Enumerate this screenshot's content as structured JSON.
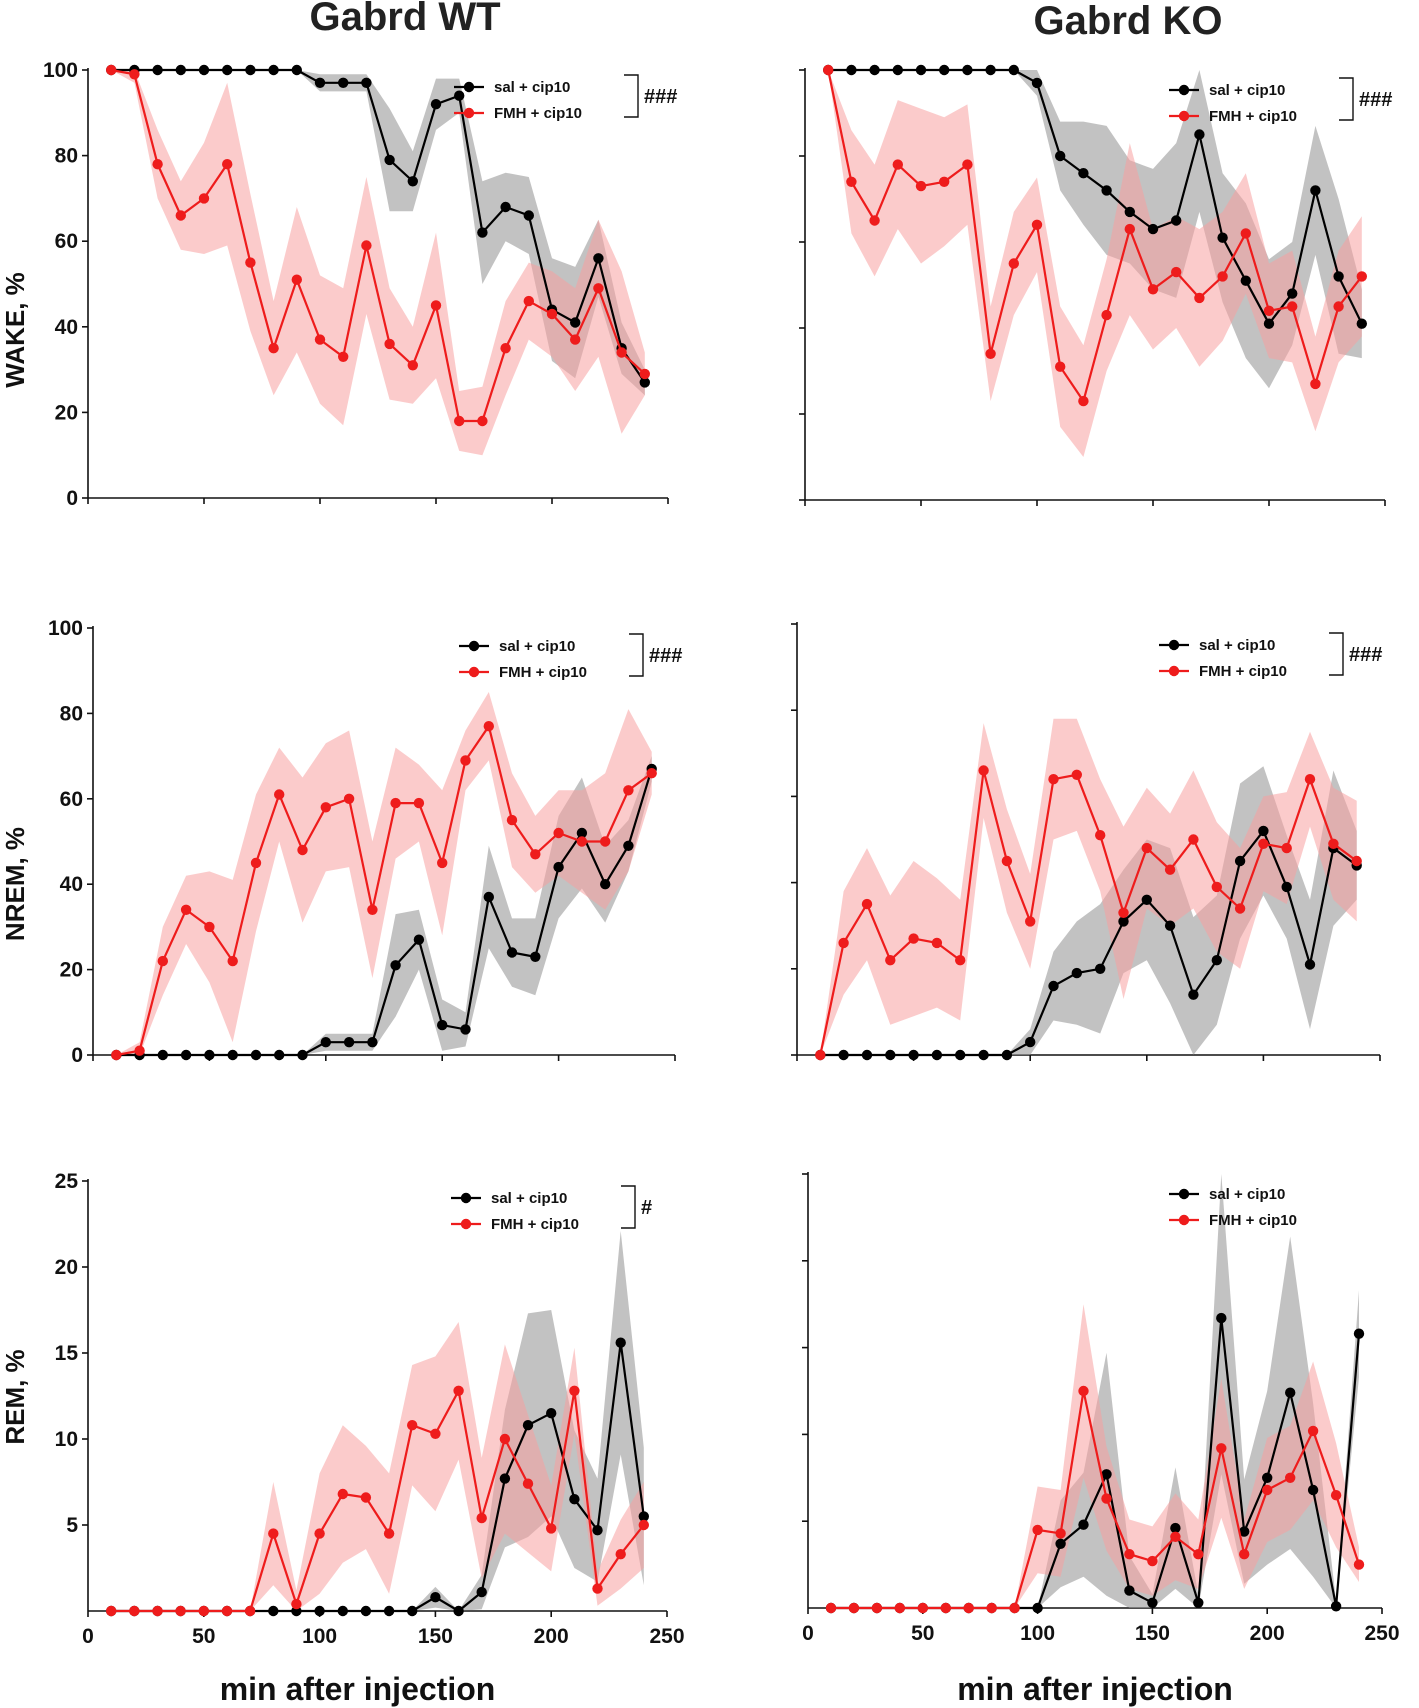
{
  "column_titles": [
    "Gabrd WT",
    "Gabrd KO"
  ],
  "x_axis_label": "min after injection",
  "legend": {
    "black": "sal + cip10",
    "red": "FMH + cip10"
  },
  "colors": {
    "black": "#000000",
    "red": "#ee1c1c",
    "black_band": "#9a9a9a",
    "red_band": "#f7a1a1"
  },
  "chart_data": [
    {
      "type": "line",
      "id": "wt-wake",
      "panel": "Gabrd WT",
      "title": "Gabrd WT",
      "ylabel": "WAKE, %",
      "xlabel": "",
      "xlim": [
        0,
        250
      ],
      "ylim": [
        0,
        100
      ],
      "yticks": [
        0,
        20,
        40,
        60,
        80,
        100
      ],
      "xticks": [],
      "significance": "###",
      "x": [
        10,
        20,
        30,
        40,
        50,
        60,
        70,
        80,
        90,
        100,
        110,
        120,
        130,
        140,
        150,
        160,
        170,
        180,
        190,
        200,
        210,
        220,
        230,
        240
      ],
      "series": [
        {
          "name": "sal + cip10",
          "color": "black",
          "values": [
            100,
            100,
            100,
            100,
            100,
            100,
            100,
            100,
            100,
            97,
            97,
            97,
            79,
            74,
            92,
            94,
            62,
            68,
            66,
            44,
            41,
            56,
            35,
            27
          ],
          "sem": [
            0,
            0,
            0,
            0,
            0,
            0,
            0,
            0,
            0,
            2,
            2,
            2,
            12,
            7,
            6,
            4,
            12,
            8,
            9,
            12,
            13,
            9,
            6,
            3
          ]
        },
        {
          "name": "FMH + cip10",
          "color": "red",
          "values": [
            100,
            99,
            78,
            66,
            70,
            78,
            55,
            35,
            51,
            37,
            33,
            59,
            36,
            31,
            45,
            18,
            18,
            35,
            46,
            43,
            37,
            49,
            34,
            29
          ],
          "sem": [
            0,
            2,
            8,
            8,
            13,
            19,
            16,
            11,
            17,
            15,
            16,
            16,
            13,
            9,
            17,
            7,
            8,
            11,
            9,
            10,
            12,
            16,
            19,
            5
          ]
        }
      ]
    },
    {
      "type": "line",
      "id": "ko-wake",
      "panel": "Gabrd KO",
      "title": "Gabrd KO",
      "ylabel": "",
      "xlabel": "",
      "xlim": [
        0,
        250
      ],
      "ylim": [
        0,
        100
      ],
      "yticks": [
        0,
        20,
        40,
        60,
        80,
        100
      ],
      "xticks": [],
      "significance": "###",
      "x": [
        10,
        20,
        30,
        40,
        50,
        60,
        70,
        80,
        90,
        100,
        110,
        120,
        130,
        140,
        150,
        160,
        170,
        180,
        190,
        200,
        210,
        220,
        230,
        240
      ],
      "series": [
        {
          "name": "sal + cip10",
          "color": "black",
          "values": [
            100,
            100,
            100,
            100,
            100,
            100,
            100,
            100,
            100,
            97,
            80,
            76,
            72,
            67,
            63,
            65,
            85,
            61,
            51,
            41,
            48,
            72,
            52,
            41
          ],
          "sem": [
            0,
            0,
            0,
            0,
            0,
            0,
            0,
            0,
            0,
            3,
            8,
            12,
            15,
            12,
            14,
            18,
            18,
            15,
            18,
            15,
            12,
            15,
            18,
            8
          ]
        },
        {
          "name": "FMH + cip10",
          "color": "red",
          "values": [
            100,
            74,
            65,
            78,
            73,
            74,
            78,
            34,
            55,
            64,
            31,
            23,
            43,
            63,
            49,
            53,
            47,
            52,
            62,
            44,
            45,
            27,
            45,
            52
          ],
          "sem": [
            0,
            12,
            13,
            15,
            18,
            15,
            14,
            11,
            12,
            11,
            14,
            13,
            13,
            20,
            14,
            13,
            16,
            15,
            14,
            11,
            13,
            11,
            13,
            14
          ]
        }
      ]
    },
    {
      "type": "line",
      "id": "wt-nrem",
      "panel": "Gabrd WT",
      "title": "",
      "ylabel": "NREM, %",
      "xlabel": "",
      "xlim": [
        0,
        250
      ],
      "ylim": [
        0,
        100
      ],
      "yticks": [
        0,
        20,
        40,
        60,
        80,
        100
      ],
      "xticks": [],
      "significance": "###",
      "x": [
        10,
        20,
        30,
        40,
        50,
        60,
        70,
        80,
        90,
        100,
        110,
        120,
        130,
        140,
        150,
        160,
        170,
        180,
        190,
        200,
        210,
        220,
        230,
        240
      ],
      "series": [
        {
          "name": "sal + cip10",
          "color": "black",
          "values": [
            0,
            0,
            0,
            0,
            0,
            0,
            0,
            0,
            0,
            3,
            3,
            3,
            21,
            27,
            7,
            6,
            37,
            24,
            23,
            44,
            52,
            40,
            49,
            67
          ],
          "sem": [
            0,
            0,
            0,
            0,
            0,
            0,
            0,
            0,
            0,
            2,
            2,
            2,
            12,
            7,
            6,
            4,
            12,
            8,
            9,
            12,
            13,
            9,
            6,
            3
          ]
        },
        {
          "name": "FMH + cip10",
          "color": "red",
          "values": [
            0,
            1,
            22,
            34,
            30,
            22,
            45,
            61,
            48,
            58,
            60,
            34,
            59,
            59,
            45,
            69,
            77,
            55,
            47,
            52,
            50,
            50,
            62,
            66
          ],
          "sem": [
            0,
            2,
            8,
            8,
            13,
            19,
            16,
            11,
            17,
            15,
            16,
            16,
            13,
            9,
            17,
            7,
            8,
            11,
            9,
            10,
            12,
            16,
            19,
            5
          ]
        }
      ]
    },
    {
      "type": "line",
      "id": "ko-nrem",
      "panel": "Gabrd KO",
      "title": "",
      "ylabel": "",
      "xlabel": "",
      "xlim": [
        0,
        250
      ],
      "ylim": [
        0,
        100
      ],
      "yticks": [
        0,
        20,
        40,
        60,
        80,
        100
      ],
      "xticks": [],
      "significance": "###",
      "x": [
        10,
        20,
        30,
        40,
        50,
        60,
        70,
        80,
        90,
        100,
        110,
        120,
        130,
        140,
        150,
        160,
        170,
        180,
        190,
        200,
        210,
        220,
        230,
        240
      ],
      "series": [
        {
          "name": "sal + cip10",
          "color": "black",
          "values": [
            0,
            0,
            0,
            0,
            0,
            0,
            0,
            0,
            0,
            3,
            16,
            19,
            20,
            31,
            36,
            30,
            14,
            22,
            45,
            52,
            39,
            21,
            48,
            44
          ],
          "sem": [
            0,
            0,
            0,
            0,
            0,
            0,
            0,
            0,
            0,
            3,
            8,
            12,
            15,
            12,
            14,
            18,
            18,
            15,
            18,
            15,
            12,
            15,
            18,
            8
          ]
        },
        {
          "name": "FMH + cip10",
          "color": "red",
          "values": [
            0,
            26,
            35,
            22,
            27,
            26,
            22,
            66,
            45,
            31,
            64,
            65,
            51,
            33,
            48,
            43,
            50,
            39,
            34,
            49,
            48,
            64,
            49,
            45
          ],
          "sem": [
            0,
            12,
            13,
            15,
            18,
            15,
            14,
            11,
            12,
            11,
            14,
            13,
            13,
            20,
            14,
            13,
            16,
            15,
            14,
            11,
            13,
            11,
            13,
            14
          ]
        }
      ]
    },
    {
      "type": "line",
      "id": "wt-rem",
      "panel": "Gabrd WT",
      "title": "",
      "ylabel": "REM, %",
      "xlabel": "min after injection",
      "xlim": [
        0,
        250
      ],
      "ylim": [
        0,
        25
      ],
      "yticks": [
        5,
        10,
        15,
        20,
        25
      ],
      "xticks": [
        0,
        50,
        100,
        150,
        200,
        250
      ],
      "significance": "#",
      "x": [
        10,
        20,
        30,
        40,
        50,
        60,
        70,
        80,
        90,
        100,
        110,
        120,
        130,
        140,
        150,
        160,
        170,
        180,
        190,
        200,
        210,
        220,
        230,
        240
      ],
      "series": [
        {
          "name": "sal + cip10",
          "color": "black",
          "values": [
            0,
            0,
            0,
            0,
            0,
            0,
            0,
            0,
            0,
            0,
            0,
            0,
            0,
            0,
            0.8,
            0,
            1.1,
            7.7,
            10.8,
            11.5,
            6.5,
            4.7,
            15.6,
            5.5
          ],
          "sem": [
            0,
            0,
            0,
            0,
            0,
            0,
            0,
            0,
            0,
            0,
            0,
            0,
            0,
            0,
            0.6,
            0,
            1,
            4,
            6.5,
            6,
            4,
            3,
            6.5,
            4
          ]
        },
        {
          "name": "FMH + cip10",
          "color": "red",
          "values": [
            0,
            0,
            0,
            0,
            0,
            0,
            0,
            4.5,
            0.4,
            4.5,
            6.8,
            6.6,
            4.5,
            10.8,
            10.3,
            12.8,
            5.4,
            10,
            7.4,
            4.8,
            12.8,
            1.3,
            3.3,
            5
          ],
          "sem": [
            0,
            0,
            0,
            0,
            0,
            0,
            0,
            3,
            0.8,
            3.5,
            4,
            3,
            3.5,
            3.5,
            4.5,
            4,
            3.5,
            5.5,
            4,
            2.5,
            2.5,
            1,
            2,
            2.5
          ]
        }
      ]
    },
    {
      "type": "line",
      "id": "ko-rem",
      "panel": "Gabrd KO",
      "title": "",
      "ylabel": "",
      "xlabel": "min after injection",
      "xlim": [
        0,
        250
      ],
      "ylim": [
        0,
        25
      ],
      "yticks": [
        5,
        10,
        15,
        20,
        25
      ],
      "xticks": [
        0,
        50,
        100,
        150,
        200,
        250
      ],
      "significance": "",
      "x": [
        10,
        20,
        30,
        40,
        50,
        60,
        70,
        80,
        90,
        100,
        110,
        120,
        130,
        140,
        150,
        160,
        170,
        180,
        190,
        200,
        210,
        220,
        230,
        240
      ],
      "series": [
        {
          "name": "sal + cip10",
          "color": "black",
          "values": [
            0,
            0,
            0,
            0,
            0,
            0,
            0,
            0,
            0,
            0,
            3.7,
            4.8,
            7.7,
            1,
            0.3,
            4.6,
            0.3,
            16.7,
            4.4,
            7.5,
            12.4,
            6.8,
            0.1,
            15.8
          ],
          "sem": [
            0,
            0,
            0,
            0,
            0,
            0,
            0,
            0,
            0,
            0,
            2.5,
            3,
            7,
            2,
            0.5,
            3.5,
            0.5,
            9,
            3,
            5,
            9,
            5,
            0.3,
            2.5
          ]
        },
        {
          "name": "FMH + cip10",
          "color": "red",
          "values": [
            0,
            0,
            0,
            0,
            0,
            0,
            0,
            0,
            0,
            4.5,
            4.3,
            12.5,
            6.3,
            3.1,
            2.7,
            4.1,
            3.1,
            9.2,
            3.1,
            6.8,
            7.5,
            10.2,
            6.5,
            2.5
          ],
          "sem": [
            0,
            0,
            0,
            0,
            0,
            0,
            0,
            0,
            0,
            2.5,
            2.5,
            5,
            3,
            2,
            2,
            2.5,
            2,
            4,
            2,
            3,
            3,
            4,
            3,
            1
          ]
        }
      ]
    }
  ]
}
